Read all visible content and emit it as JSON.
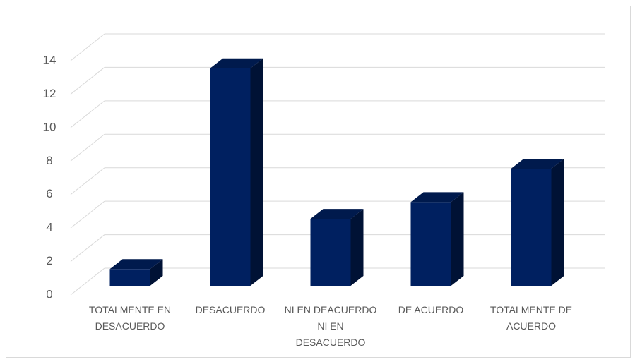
{
  "chart_data": {
    "type": "bar3d",
    "categories": [
      "TOTALMENTE EN DESACUERDO",
      "DESACUERDO",
      "NI EN DEACUERDO NI EN DESACUERDO",
      "DE ACUERDO",
      "TOTALMENTE DE ACUERDO"
    ],
    "values": [
      1,
      13,
      4,
      5,
      7
    ],
    "color": "#002060",
    "ylim": [
      0,
      14
    ],
    "yticks": [
      0,
      2,
      4,
      6,
      8,
      10,
      12,
      14
    ],
    "grid": true
  }
}
